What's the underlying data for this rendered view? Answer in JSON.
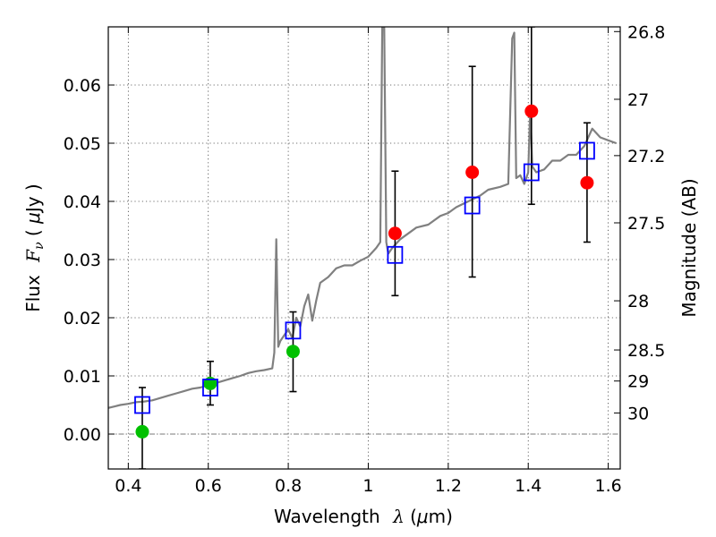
{
  "chart_data": {
    "type": "scatter",
    "xlabel_main": "Wavelength",
    "xlabel_symbol": "λ",
    "xlabel_unit_open": " (",
    "xlabel_unit_mu": "μ",
    "xlabel_unit_close": "m)",
    "ylabel_main": "Flux",
    "ylabel_symbol": "F",
    "ylabel_sub": "ν",
    "ylabel_unit_open": " ( ",
    "ylabel_unit_mu": "μ",
    "ylabel_unit_close": "Jy )",
    "y2label": "Magnitude (AB)",
    "xlim": [
      0.35,
      1.63
    ],
    "ylim": [
      -0.006,
      0.07
    ],
    "grid": true,
    "x_ticks": [
      {
        "value": 0.4,
        "label": "0.4"
      },
      {
        "value": 0.6,
        "label": "0.6"
      },
      {
        "value": 0.8,
        "label": "0.8"
      },
      {
        "value": 1.0,
        "label": "1"
      },
      {
        "value": 1.2,
        "label": "1.2"
      },
      {
        "value": 1.4,
        "label": "1.4"
      },
      {
        "value": 1.6,
        "label": "1.6"
      }
    ],
    "y_ticks": [
      {
        "value": 0.0,
        "label": "0.00"
      },
      {
        "value": 0.01,
        "label": "0.01"
      },
      {
        "value": 0.02,
        "label": "0.02"
      },
      {
        "value": 0.03,
        "label": "0.03"
      },
      {
        "value": 0.04,
        "label": "0.04"
      },
      {
        "value": 0.05,
        "label": "0.05"
      },
      {
        "value": 0.06,
        "label": "0.06"
      }
    ],
    "y2_ticks": [
      {
        "value": 26.8,
        "label": "26.8"
      },
      {
        "value": 27.0,
        "label": "27"
      },
      {
        "value": 27.2,
        "label": "27.2"
      },
      {
        "value": 27.5,
        "label": "27.5"
      },
      {
        "value": 28.0,
        "label": "28"
      },
      {
        "value": 28.5,
        "label": "28.5"
      },
      {
        "value": 29.0,
        "label": "29"
      },
      {
        "value": 30.0,
        "label": "30"
      }
    ],
    "series": [
      {
        "kind": "line",
        "color": "#808080",
        "x": [
          0.35,
          0.38,
          0.4,
          0.42,
          0.44,
          0.46,
          0.48,
          0.5,
          0.52,
          0.54,
          0.56,
          0.58,
          0.6,
          0.62,
          0.64,
          0.66,
          0.68,
          0.7,
          0.72,
          0.74,
          0.76,
          0.765,
          0.77,
          0.775,
          0.78,
          0.8,
          0.81,
          0.82,
          0.83,
          0.84,
          0.85,
          0.86,
          0.87,
          0.88,
          0.9,
          0.92,
          0.94,
          0.96,
          0.98,
          1.0,
          1.02,
          1.03,
          1.035,
          1.04,
          1.045,
          1.05,
          1.06,
          1.08,
          1.1,
          1.12,
          1.15,
          1.18,
          1.2,
          1.22,
          1.25,
          1.28,
          1.3,
          1.33,
          1.35,
          1.36,
          1.365,
          1.37,
          1.38,
          1.39,
          1.4,
          1.405,
          1.41,
          1.42,
          1.44,
          1.46,
          1.48,
          1.5,
          1.52,
          1.54,
          1.56,
          1.58,
          1.6,
          1.62
        ],
        "y": [
          0.0045,
          0.005,
          0.0052,
          0.0055,
          0.0056,
          0.0058,
          0.0062,
          0.0066,
          0.007,
          0.0074,
          0.0078,
          0.008,
          0.0084,
          0.0088,
          0.0092,
          0.0096,
          0.01,
          0.0105,
          0.0108,
          0.011,
          0.0113,
          0.014,
          0.0335,
          0.015,
          0.016,
          0.018,
          0.0165,
          0.02,
          0.0185,
          0.022,
          0.024,
          0.0195,
          0.023,
          0.026,
          0.027,
          0.0285,
          0.029,
          0.029,
          0.0298,
          0.0305,
          0.032,
          0.033,
          0.07,
          0.07,
          0.033,
          0.031,
          0.032,
          0.0335,
          0.0345,
          0.0355,
          0.036,
          0.0375,
          0.038,
          0.039,
          0.04,
          0.041,
          0.042,
          0.0425,
          0.043,
          0.068,
          0.069,
          0.044,
          0.0445,
          0.043,
          0.045,
          0.056,
          0.046,
          0.045,
          0.0455,
          0.047,
          0.047,
          0.048,
          0.048,
          0.0495,
          0.0525,
          0.051,
          0.0505,
          0.05
        ]
      },
      {
        "kind": "errorbar",
        "color": "#000000",
        "points": [
          {
            "x": 0.435,
            "low": -0.006,
            "high": 0.008
          },
          {
            "x": 0.605,
            "low": 0.005,
            "high": 0.0125
          },
          {
            "x": 0.812,
            "low": 0.0073,
            "high": 0.021
          },
          {
            "x": 1.067,
            "low": 0.0238,
            "high": 0.0452
          },
          {
            "x": 1.26,
            "low": 0.027,
            "high": 0.0632
          },
          {
            "x": 1.408,
            "low": 0.0395,
            "high": 0.07
          },
          {
            "x": 1.547,
            "low": 0.033,
            "high": 0.0535
          }
        ]
      },
      {
        "kind": "scatter",
        "marker": "circle",
        "color": "#00c000",
        "x": [
          0.435,
          0.605,
          0.812
        ],
        "y": [
          0.0004,
          0.0087,
          0.0142
        ]
      },
      {
        "kind": "scatter",
        "marker": "circle",
        "color": "#ff0000",
        "x": [
          1.067,
          1.26,
          1.408,
          1.547
        ],
        "y": [
          0.0345,
          0.045,
          0.0555,
          0.0432
        ]
      },
      {
        "kind": "scatter",
        "marker": "square",
        "color": "#0000ff",
        "x": [
          0.435,
          0.605,
          0.812,
          1.067,
          1.26,
          1.408,
          1.547
        ],
        "y": [
          0.005,
          0.008,
          0.0178,
          0.0308,
          0.0393,
          0.045,
          0.0487
        ]
      }
    ]
  }
}
